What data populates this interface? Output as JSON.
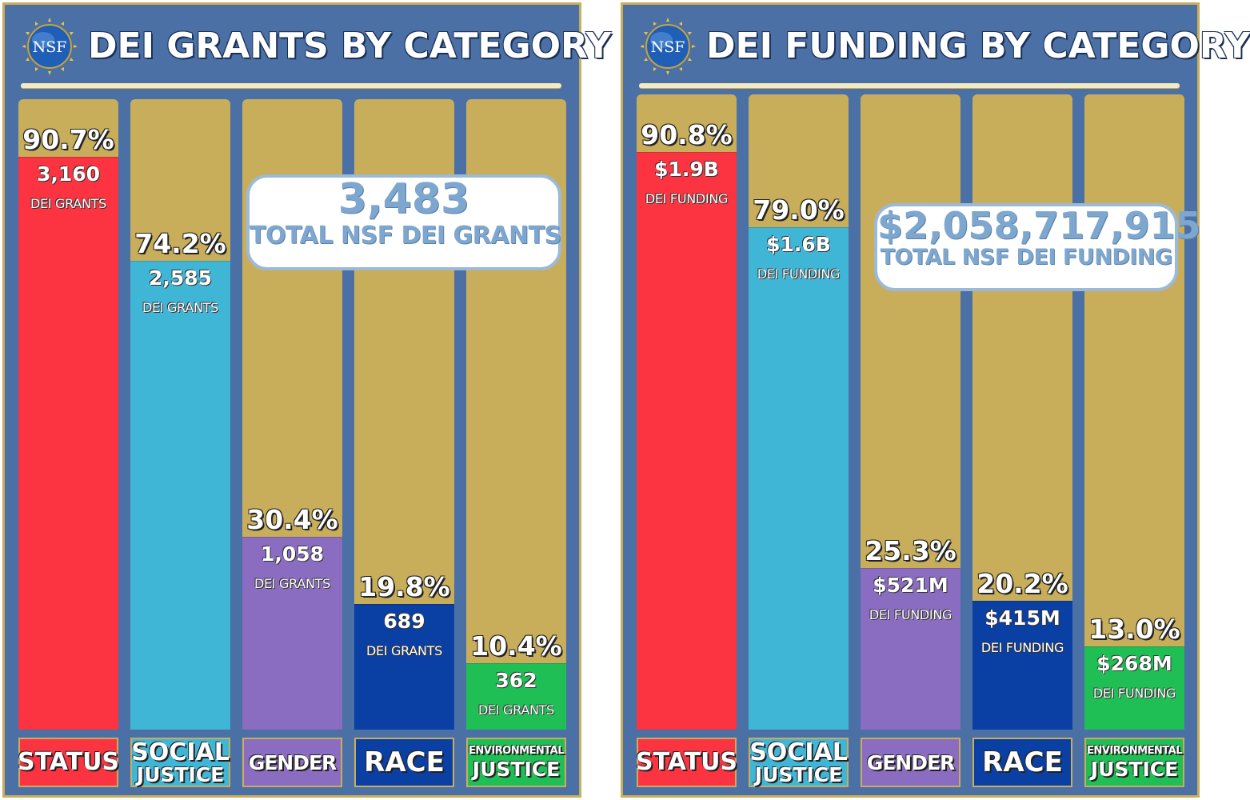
{
  "logo_text": "NSF",
  "colors": {
    "panel_bg": "#4a70a6",
    "column_bg": "#c8ae5a",
    "status": "#fc3340",
    "social_justice": "#40b6d7",
    "gender": "#8a6cc0",
    "race": "#0a3fa3",
    "environmental_justice": "#1fbf55",
    "total_text": "#7ea7cf"
  },
  "chart_data": [
    {
      "type": "bar",
      "title": "DEI GRANTS BY CATEGORY",
      "categories": [
        "STATUS",
        "SOCIAL JUSTICE",
        "GENDER",
        "RACE",
        "ENVIRONMENTAL JUSTICE"
      ],
      "percent_labels": [
        "90.7%",
        "74.2%",
        "30.4%",
        "19.8%",
        "10.4%"
      ],
      "percentages": [
        90.7,
        74.2,
        30.4,
        19.8,
        10.4
      ],
      "value_labels": [
        "3,160",
        "2,585",
        "1,058",
        "689",
        "362"
      ],
      "values": [
        3160,
        2585,
        1058,
        689,
        362
      ],
      "unit_label": "DEI GRANTS",
      "ylim": [
        0,
        100
      ],
      "total": {
        "value": "3,483",
        "label": "TOTAL NSF DEI GRANTS"
      }
    },
    {
      "type": "bar",
      "title": "DEI FUNDING BY CATEGORY",
      "categories": [
        "STATUS",
        "SOCIAL JUSTICE",
        "GENDER",
        "RACE",
        "ENVIRONMENTAL JUSTICE"
      ],
      "percent_labels": [
        "90.8%",
        "79.0%",
        "25.3%",
        "20.2%",
        "13.0%"
      ],
      "percentages": [
        90.8,
        79.0,
        25.3,
        20.2,
        13.0
      ],
      "value_labels": [
        "$1.9B",
        "$1.6B",
        "$521M",
        "$415M",
        "$268M"
      ],
      "values": [
        1.9,
        1.6,
        0.521,
        0.415,
        0.268
      ],
      "unit_label": "DEI FUNDING",
      "ylim": [
        0,
        100
      ],
      "total": {
        "value": "$2,058,717,915",
        "label": "TOTAL NSF DEI FUNDING"
      }
    }
  ],
  "labels": {
    "status": "STATUS",
    "social_1": "SOCIAL",
    "social_2": "JUSTICE",
    "gender": "GENDER",
    "race": "RACE",
    "env_1": "ENVIRONMENTAL",
    "env_2": "JUSTICE"
  }
}
